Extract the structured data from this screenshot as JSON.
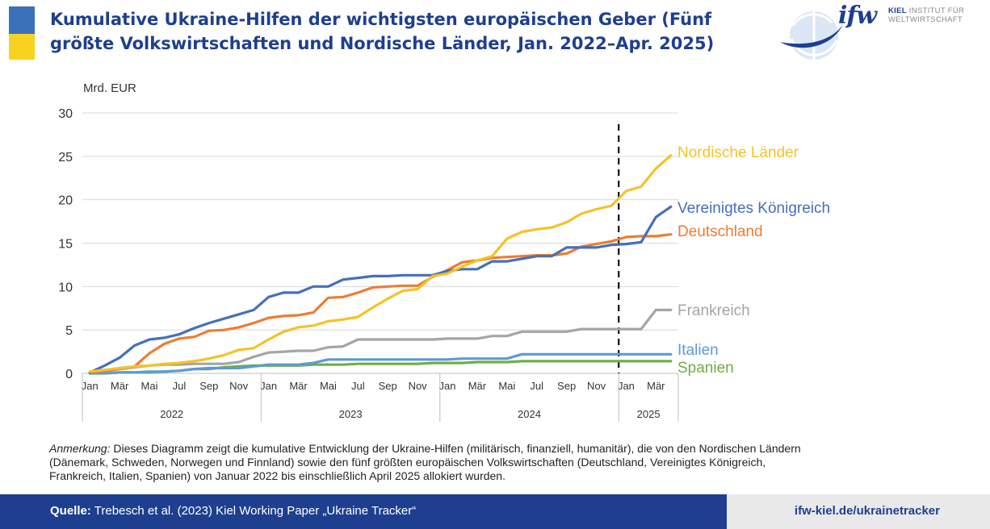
{
  "title": "Kumulative Ukraine-Hilfen der wichtigsten europäischen Geber (Fünf größte Volkswirtschaften und Nordische Länder, Jan. 2022–Apr. 2025)",
  "logo": {
    "word": "ifw",
    "line1": "KIEL",
    "line1b": "INSTITUT FÜR",
    "line2": "WELTWIRTSCHAFT"
  },
  "note": {
    "label": "Anmerkung:",
    "text": "Dieses Diagramm zeigt die kumulative Entwicklung der Ukraine-Hilfen (militärisch, finanziell, humanitär), die von den Nordischen Ländern (Dänemark, Schweden, Norwegen und Finnland) sowie den fünf größten europäischen Volkswirtschaften (Deutschland, Vereinigtes Königreich, Frankreich, Italien, Spanien) von Januar 2022 bis einschließlich April 2025 allokiert wurden."
  },
  "footer": {
    "source_label": "Quelle:",
    "source_text": "Trebesch et al. (2023) Kiel Working Paper „Ukraine Tracker“",
    "url": "ifw-kiel.de/ukrainetracker"
  },
  "colors": {
    "brand": "#1e3f8f",
    "flag_blue": "#3a71b8",
    "flag_yellow": "#f7d21e"
  },
  "chart_data": {
    "type": "line",
    "ylabel": "Mrd. EUR",
    "ylim": [
      0,
      30
    ],
    "yticks": [
      0,
      5,
      10,
      15,
      20,
      25,
      30
    ],
    "month_labels": [
      "Jan",
      "",
      "Mär",
      "",
      "Mai",
      "",
      "Jul",
      "",
      "Sep",
      "",
      "Nov",
      "",
      "Jan",
      "",
      "Mär",
      "",
      "Mai",
      "",
      "Jul",
      "",
      "Sep",
      "",
      "Nov",
      "",
      "Jan",
      "",
      "Mär",
      "",
      "Mai",
      "",
      "Jul",
      "",
      "Sep",
      "",
      "Nov",
      "",
      "Jan",
      "",
      "Mär",
      ""
    ],
    "years": [
      {
        "label": "2022",
        "start": 0,
        "end": 12
      },
      {
        "label": "2023",
        "start": 12,
        "end": 24
      },
      {
        "label": "2024",
        "start": 24,
        "end": 36
      },
      {
        "label": "2025",
        "start": 36,
        "end": 40
      }
    ],
    "vline_after_month": 36,
    "grid": true,
    "series": [
      {
        "name": "Nordische Länder",
        "color": "#f5c227",
        "values": [
          0.2,
          0.4,
          0.6,
          0.8,
          0.9,
          1.1,
          1.2,
          1.4,
          1.7,
          2.1,
          2.7,
          2.9,
          3.9,
          4.8,
          5.3,
          5.5,
          6.0,
          6.2,
          6.5,
          7.6,
          8.6,
          9.5,
          9.7,
          11.2,
          11.5,
          12.3,
          13.0,
          13.5,
          15.5,
          16.3,
          16.6,
          16.8,
          17.4,
          18.4,
          18.9,
          19.3,
          21.0,
          21.5,
          23.6,
          25.1
        ]
      },
      {
        "name": "Vereinigtes Königreich",
        "color": "#4470b9",
        "values": [
          0.1,
          0.9,
          1.8,
          3.2,
          3.9,
          4.1,
          4.5,
          5.2,
          5.8,
          6.3,
          6.8,
          7.3,
          8.8,
          9.3,
          9.3,
          10.0,
          10.0,
          10.8,
          11.0,
          11.2,
          11.2,
          11.3,
          11.3,
          11.3,
          11.8,
          12.0,
          12.0,
          12.9,
          12.9,
          13.2,
          13.5,
          13.5,
          14.5,
          14.5,
          14.5,
          14.8,
          14.9,
          15.1,
          18.0,
          19.2
        ]
      },
      {
        "name": "Deutschland",
        "color": "#ec7d31",
        "values": [
          0.1,
          0.3,
          0.5,
          0.8,
          2.3,
          3.4,
          4.0,
          4.2,
          4.9,
          5.0,
          5.3,
          5.8,
          6.4,
          6.6,
          6.7,
          7.0,
          8.7,
          8.8,
          9.3,
          9.9,
          10.0,
          10.1,
          10.1,
          11.1,
          11.9,
          12.8,
          13.0,
          13.3,
          13.4,
          13.5,
          13.6,
          13.6,
          13.8,
          14.6,
          14.9,
          15.2,
          15.7,
          15.8,
          15.8,
          16.0
        ]
      },
      {
        "name": "Frankreich",
        "color": "#a5a5a5",
        "values": [
          0.1,
          0.3,
          0.5,
          0.7,
          0.9,
          1.0,
          1.0,
          1.1,
          1.1,
          1.1,
          1.3,
          1.9,
          2.4,
          2.5,
          2.6,
          2.6,
          3.0,
          3.1,
          3.9,
          3.9,
          3.9,
          3.9,
          3.9,
          3.9,
          4.0,
          4.0,
          4.0,
          4.3,
          4.3,
          4.8,
          4.8,
          4.8,
          4.8,
          5.1,
          5.1,
          5.1,
          5.1,
          5.1,
          7.3,
          7.3
        ]
      },
      {
        "name": "Italien",
        "color": "#5b9bd5",
        "values": [
          0.0,
          0.05,
          0.1,
          0.1,
          0.2,
          0.2,
          0.3,
          0.5,
          0.6,
          0.6,
          0.6,
          0.8,
          1.0,
          1.0,
          1.0,
          1.2,
          1.6,
          1.6,
          1.6,
          1.6,
          1.6,
          1.6,
          1.6,
          1.6,
          1.6,
          1.7,
          1.7,
          1.7,
          1.7,
          2.2,
          2.2,
          2.2,
          2.2,
          2.2,
          2.2,
          2.2,
          2.2,
          2.2,
          2.2,
          2.2
        ]
      },
      {
        "name": "Spanien",
        "color": "#70ad47",
        "values": [
          0.0,
          0.0,
          0.1,
          0.1,
          0.1,
          0.2,
          0.3,
          0.5,
          0.5,
          0.7,
          0.8,
          0.9,
          0.9,
          0.9,
          0.9,
          1.0,
          1.0,
          1.0,
          1.1,
          1.1,
          1.1,
          1.1,
          1.1,
          1.2,
          1.2,
          1.2,
          1.3,
          1.3,
          1.3,
          1.4,
          1.4,
          1.4,
          1.4,
          1.4,
          1.4,
          1.4,
          1.4,
          1.4,
          1.4,
          1.4
        ]
      }
    ]
  }
}
